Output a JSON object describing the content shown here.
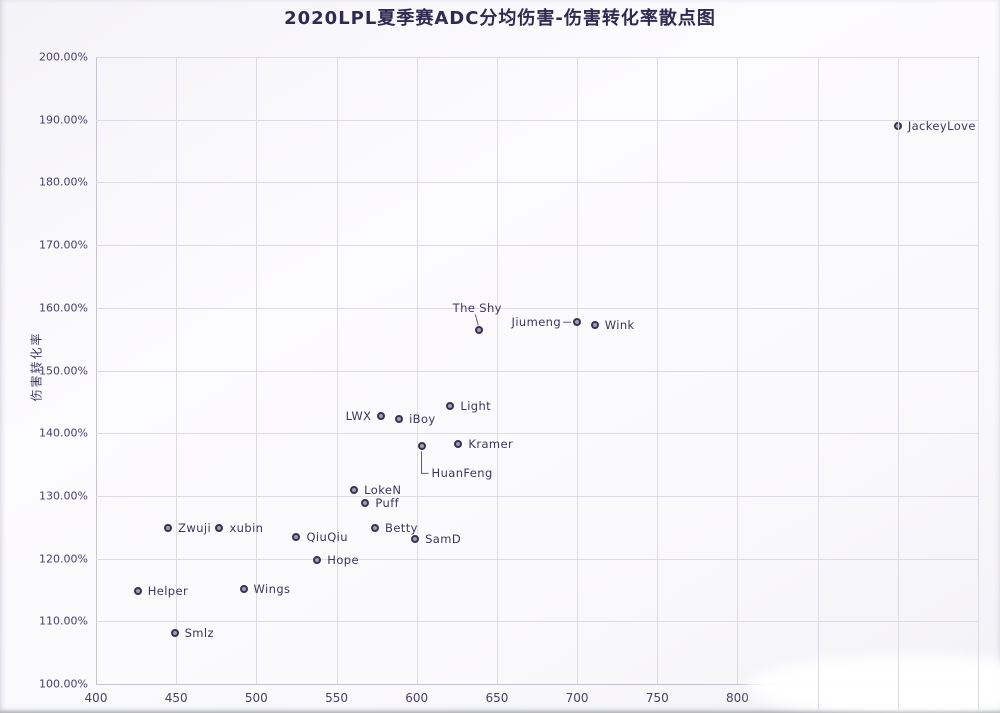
{
  "colors": {
    "title_text": "#2f2a52",
    "axis_text": "#47416b",
    "point_label_text": "#3c365f",
    "marker_border": "#373351",
    "marker_fill": "#9e9cba",
    "gridline": "#dcdce5",
    "plot_border": "#c5c5d2",
    "background": "#faf9fc"
  },
  "chart_data": {
    "type": "scatter",
    "title": "2020LPL夏季赛ADC分均伤害-伤害转化率散点图",
    "xlabel": "",
    "ylabel": "伤害转化率",
    "xlim": [
      400,
      950
    ],
    "ylim": [
      100,
      200
    ],
    "x_grid_step": 50,
    "y_grid_step": 10,
    "grid": true,
    "legend": "none",
    "x_labeled_ticks": [
      "400",
      "450",
      "500",
      "550",
      "600",
      "650",
      "700",
      "750",
      "800"
    ],
    "y_tick_labels": [
      "100.00%",
      "110.00%",
      "120.00%",
      "130.00%",
      "140.00%",
      "150.00%",
      "160.00%",
      "170.00%",
      "180.00%",
      "190.00%",
      "200.00%"
    ],
    "points": [
      {
        "name": "JackeyLove",
        "x": 900,
        "y": 189.0,
        "label_pos": "right"
      },
      {
        "name": "Jiumeng",
        "x": 700,
        "y": 157.7,
        "label_pos": "left-dash"
      },
      {
        "name": "Wink",
        "x": 711,
        "y": 157.2,
        "label_pos": "right"
      },
      {
        "name": "The Shy",
        "x": 639,
        "y": 156.4,
        "label_pos": "above"
      },
      {
        "name": "Light",
        "x": 621,
        "y": 144.4,
        "label_pos": "right"
      },
      {
        "name": "LWX",
        "x": 578,
        "y": 142.8,
        "label_pos": "left"
      },
      {
        "name": "iBoy",
        "x": 589,
        "y": 142.3,
        "label_pos": "right"
      },
      {
        "name": "Kramer",
        "x": 626,
        "y": 138.2,
        "label_pos": "right"
      },
      {
        "name": "HuanFeng",
        "x": 603,
        "y": 137.9,
        "label_pos": "elbow-below"
      },
      {
        "name": "LokeN",
        "x": 561,
        "y": 130.9,
        "label_pos": "right"
      },
      {
        "name": "Puff",
        "x": 568,
        "y": 128.8,
        "label_pos": "right"
      },
      {
        "name": "Zwuji",
        "x": 445,
        "y": 124.9,
        "label_pos": "right"
      },
      {
        "name": "xubin",
        "x": 477,
        "y": 124.9,
        "label_pos": "right"
      },
      {
        "name": "Betty",
        "x": 574,
        "y": 124.9,
        "label_pos": "right"
      },
      {
        "name": "SamD",
        "x": 599,
        "y": 123.2,
        "label_pos": "right"
      },
      {
        "name": "QiuQiu",
        "x": 525,
        "y": 123.4,
        "label_pos": "right"
      },
      {
        "name": "Hope",
        "x": 538,
        "y": 119.8,
        "label_pos": "right"
      },
      {
        "name": "Wings",
        "x": 492,
        "y": 115.1,
        "label_pos": "right"
      },
      {
        "name": "Helper",
        "x": 426,
        "y": 114.9,
        "label_pos": "right"
      },
      {
        "name": "Smlz",
        "x": 449,
        "y": 108.1,
        "label_pos": "right"
      }
    ]
  }
}
